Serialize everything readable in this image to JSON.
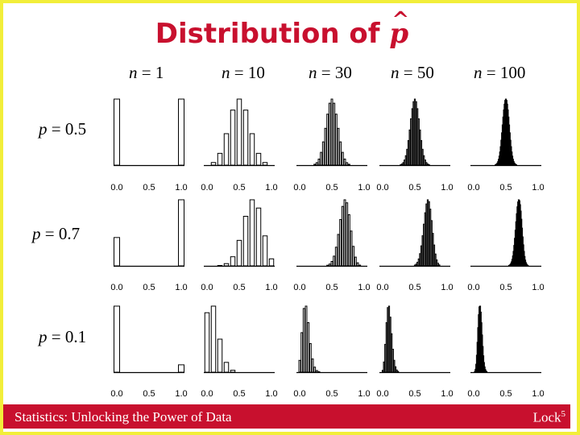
{
  "title": {
    "text": "Distribution of ",
    "symbol": "p",
    "hat": "^"
  },
  "columns": [
    {
      "var": "n",
      "eq": " = ",
      "val": "1"
    },
    {
      "var": "n",
      "eq": " = ",
      "val": "10"
    },
    {
      "var": "n",
      "eq": " = ",
      "val": "30"
    },
    {
      "var": "n",
      "eq": " = ",
      "val": "50"
    },
    {
      "var": "n",
      "eq": " = ",
      "val": "100"
    }
  ],
  "rows": [
    {
      "var": "p",
      "eq": " = ",
      "val": "0.5",
      "p": 0.5
    },
    {
      "var": "p",
      "eq": " = ",
      "val": "0.7",
      "p": 0.7
    },
    {
      "var": "p",
      "eq": " = ",
      "val": "0.1",
      "p": 0.1
    }
  ],
  "n_values": [
    1,
    10,
    30,
    50,
    100
  ],
  "tick_labels": [
    "0.0",
    "0.5",
    "1.0"
  ],
  "chart_data": {
    "type": "bar",
    "description_source": "sampling distributions of the sample proportion for each n and p",
    "x_range": [
      0,
      1
    ]
  },
  "footer": {
    "left": "Statistics: Unlocking the Power of Data",
    "right": "Lock",
    "right_sup": "5"
  },
  "colors": {
    "title": "#c8102e",
    "footer_bg": "#c8102e",
    "frame": "#f2ee3a"
  }
}
